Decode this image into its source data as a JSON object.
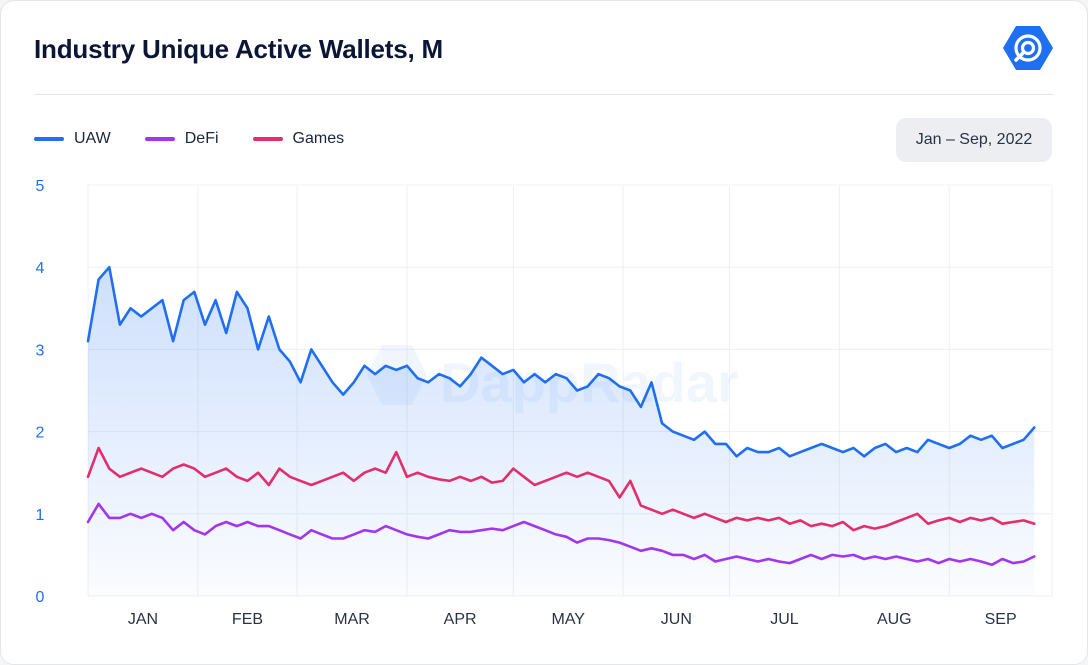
{
  "header": {
    "title": "Industry Unique Active Wallets, M"
  },
  "brand": {
    "logo_icon": "dappradar-logo-icon",
    "watermark": "DappRadar",
    "color": "#1f6ff2"
  },
  "period_button": {
    "label": "Jan – Sep, 2022"
  },
  "chart_data": {
    "type": "line",
    "title": "Industry Unique Active Wallets, M",
    "xlabel": "",
    "ylabel": "",
    "x_range": [
      "2022-01-01",
      "2022-09-30"
    ],
    "ylim": [
      0,
      5
    ],
    "yticks": [
      0,
      1,
      2,
      3,
      4,
      5
    ],
    "month_labels": [
      "JAN",
      "FEB",
      "MAR",
      "APR",
      "MAY",
      "JUN",
      "JUL",
      "AUG",
      "SEP"
    ],
    "legend_position": "top-left",
    "grid": true,
    "sample_step_days": 3,
    "series": [
      {
        "name": "UAW",
        "color": "#1f6ff2",
        "fill": true,
        "values": [
          3.1,
          3.85,
          4.0,
          3.3,
          3.5,
          3.4,
          3.5,
          3.6,
          3.1,
          3.6,
          3.7,
          3.3,
          3.6,
          3.2,
          3.7,
          3.5,
          3.0,
          3.4,
          3.0,
          2.85,
          2.6,
          3.0,
          2.8,
          2.6,
          2.45,
          2.6,
          2.8,
          2.7,
          2.8,
          2.75,
          2.8,
          2.65,
          2.6,
          2.7,
          2.65,
          2.55,
          2.7,
          2.9,
          2.8,
          2.7,
          2.75,
          2.6,
          2.7,
          2.6,
          2.7,
          2.65,
          2.5,
          2.55,
          2.7,
          2.65,
          2.55,
          2.5,
          2.3,
          2.6,
          2.1,
          2.0,
          1.95,
          1.9,
          2.0,
          1.85,
          1.85,
          1.7,
          1.8,
          1.75,
          1.75,
          1.8,
          1.7,
          1.75,
          1.8,
          1.85,
          1.8,
          1.75,
          1.8,
          1.7,
          1.8,
          1.85,
          1.75,
          1.8,
          1.75,
          1.9,
          1.85,
          1.8,
          1.85,
          1.95,
          1.9,
          1.95,
          1.8,
          1.85,
          1.9,
          2.05
        ]
      },
      {
        "name": "DeFi",
        "color": "#a335ef",
        "fill": false,
        "values": [
          0.9,
          1.12,
          0.95,
          0.95,
          1.0,
          0.95,
          1.0,
          0.95,
          0.8,
          0.9,
          0.8,
          0.75,
          0.85,
          0.9,
          0.85,
          0.9,
          0.85,
          0.85,
          0.8,
          0.75,
          0.7,
          0.8,
          0.75,
          0.7,
          0.7,
          0.75,
          0.8,
          0.78,
          0.85,
          0.8,
          0.75,
          0.72,
          0.7,
          0.75,
          0.8,
          0.78,
          0.78,
          0.8,
          0.82,
          0.8,
          0.85,
          0.9,
          0.85,
          0.8,
          0.75,
          0.72,
          0.65,
          0.7,
          0.7,
          0.68,
          0.65,
          0.6,
          0.55,
          0.58,
          0.55,
          0.5,
          0.5,
          0.45,
          0.5,
          0.42,
          0.45,
          0.48,
          0.45,
          0.42,
          0.45,
          0.42,
          0.4,
          0.45,
          0.5,
          0.45,
          0.5,
          0.48,
          0.5,
          0.45,
          0.48,
          0.45,
          0.48,
          0.45,
          0.42,
          0.45,
          0.4,
          0.45,
          0.42,
          0.45,
          0.42,
          0.38,
          0.45,
          0.4,
          0.42,
          0.48
        ]
      },
      {
        "name": "Games",
        "color": "#e22e6a",
        "fill": false,
        "values": [
          1.45,
          1.8,
          1.55,
          1.45,
          1.5,
          1.55,
          1.5,
          1.45,
          1.55,
          1.6,
          1.55,
          1.45,
          1.5,
          1.55,
          1.45,
          1.4,
          1.5,
          1.35,
          1.55,
          1.45,
          1.4,
          1.35,
          1.4,
          1.45,
          1.5,
          1.4,
          1.5,
          1.55,
          1.5,
          1.75,
          1.45,
          1.5,
          1.45,
          1.42,
          1.4,
          1.45,
          1.4,
          1.45,
          1.38,
          1.4,
          1.55,
          1.45,
          1.35,
          1.4,
          1.45,
          1.5,
          1.45,
          1.5,
          1.45,
          1.4,
          1.2,
          1.4,
          1.1,
          1.05,
          1.0,
          1.05,
          1.0,
          0.95,
          1.0,
          0.95,
          0.9,
          0.95,
          0.92,
          0.95,
          0.92,
          0.95,
          0.88,
          0.92,
          0.85,
          0.88,
          0.85,
          0.9,
          0.8,
          0.85,
          0.82,
          0.85,
          0.9,
          0.95,
          1.0,
          0.88,
          0.92,
          0.95,
          0.9,
          0.95,
          0.92,
          0.95,
          0.88,
          0.9,
          0.92,
          0.88
        ]
      }
    ]
  }
}
